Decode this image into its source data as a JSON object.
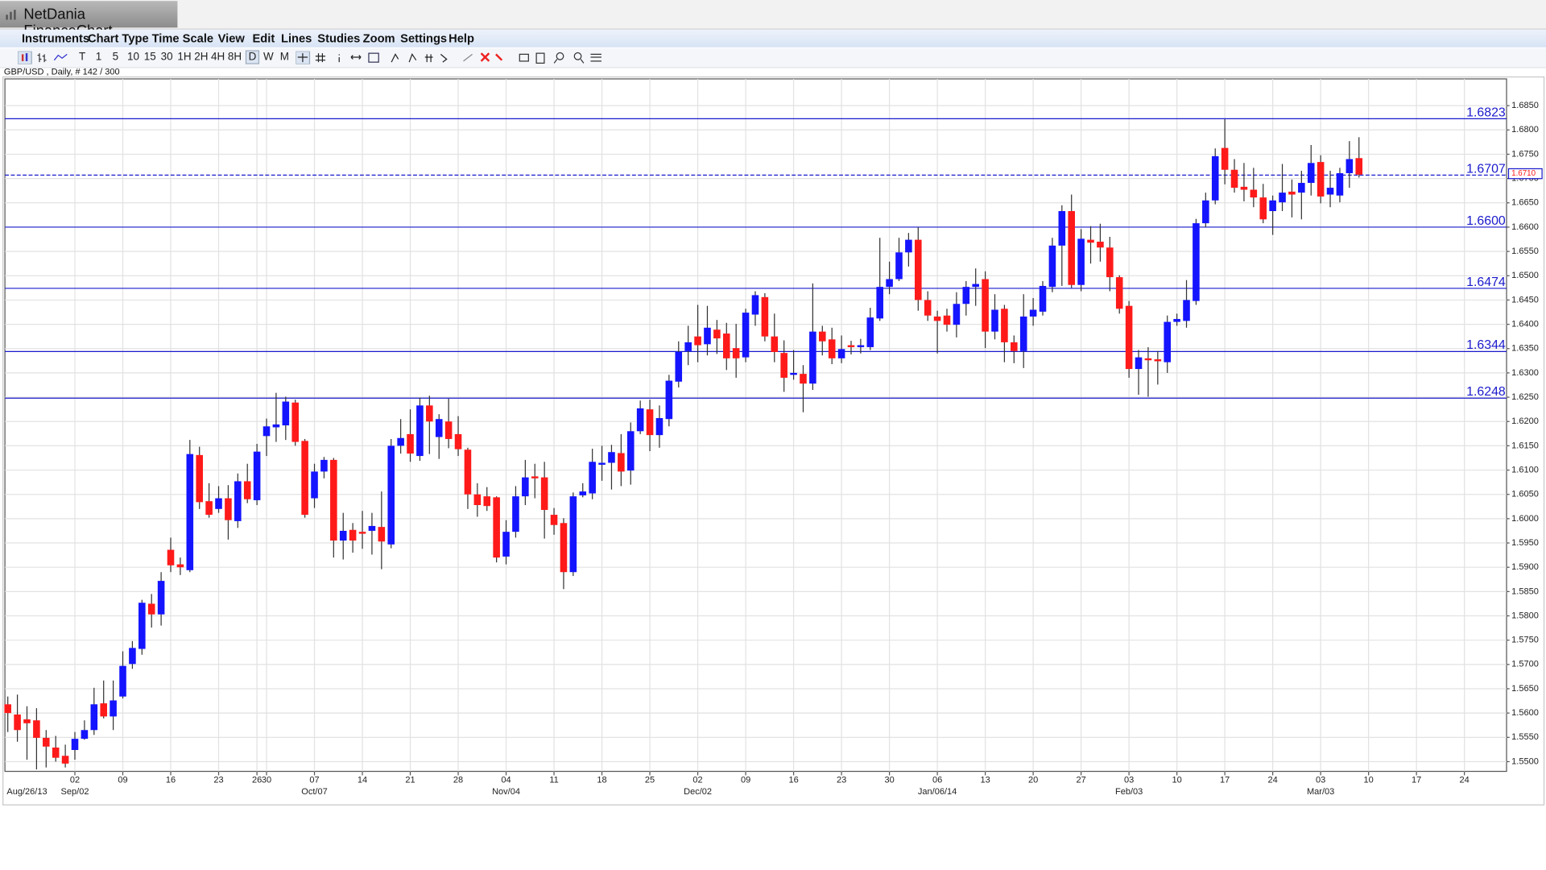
{
  "window": {
    "app_title": "NetDania FinanceChart",
    "menu": [
      "Instruments",
      "Chart Type",
      "Time Scale",
      "View",
      "Edit",
      "Lines",
      "Studies",
      "Zoom",
      "Settings",
      "Help"
    ],
    "timeframes": [
      "T",
      "1",
      "5",
      "10",
      "15",
      "30",
      "1H",
      "2H",
      "4H",
      "8H",
      "D",
      "W",
      "M"
    ]
  },
  "chart_data": {
    "type": "candlestick",
    "title": "GBP/USD , Daily, # 142 / 300",
    "up_color": "#1414ff",
    "down_color": "#ff1a1a",
    "wick_color": "#333333",
    "grid": true,
    "x": [
      0,
      1,
      2,
      3,
      4,
      5,
      6,
      7,
      8,
      9,
      10,
      11,
      12,
      13,
      14,
      15,
      16,
      17,
      18,
      19,
      20,
      21,
      22,
      23,
      24,
      25,
      26,
      27,
      28,
      29,
      30,
      31,
      32,
      33,
      34,
      35,
      36,
      37,
      38,
      39,
      40,
      41,
      42,
      43,
      44,
      45,
      46,
      47,
      48,
      49,
      50,
      51,
      52,
      53,
      54,
      55,
      56,
      57,
      58,
      59,
      60,
      61,
      62,
      63,
      64,
      65,
      66,
      67,
      68,
      69,
      70,
      71,
      72,
      73,
      74,
      75,
      76,
      77,
      78,
      79,
      80,
      81,
      82,
      83,
      84,
      85,
      86,
      87,
      88,
      89,
      90,
      91,
      92,
      93,
      94,
      95,
      96,
      97,
      98,
      99,
      100,
      101,
      102,
      103,
      104,
      105,
      106,
      107,
      108,
      109,
      110,
      111,
      112,
      113,
      114,
      115,
      116,
      117,
      118,
      119,
      120,
      121,
      122,
      123,
      124,
      125,
      126,
      127,
      128,
      129,
      130,
      131,
      132,
      133,
      134,
      135,
      136,
      137,
      138,
      139,
      140,
      141
    ],
    "open": [
      1.5618,
      1.5597,
      1.5587,
      1.5585,
      1.5549,
      1.5529,
      1.5512,
      1.5524,
      1.5547,
      1.5565,
      1.562,
      1.5593,
      1.5634,
      1.5701,
      1.5732,
      1.5825,
      1.5803,
      1.5936,
      1.5906,
      1.5894,
      1.6131,
      1.6036,
      1.602,
      1.6042,
      1.5995,
      1.6077,
      1.6038,
      1.617,
      1.6188,
      1.6192,
      1.6239,
      1.616,
      1.6042,
      1.6097,
      1.6121,
      1.5955,
      1.5977,
      1.5973,
      1.5975,
      1.5983,
      1.5947,
      1.615,
      1.6174,
      1.6129,
      1.6233,
      1.6168,
      1.62,
      1.6174,
      1.6142,
      1.605,
      1.6046,
      1.6044,
      1.5922,
      1.5973,
      1.6046,
      1.6087,
      1.6085,
      1.6008,
      1.5991,
      1.589,
      1.6048,
      1.6052,
      1.6111,
      1.6115,
      1.6135,
      1.6099,
      1.618,
      1.6225,
      1.6172,
      1.6205,
      1.6282,
      1.6345,
      1.6375,
      1.6359,
      1.6389,
      1.6381,
      1.6351,
      1.6332,
      1.642,
      1.6456,
      1.6375,
      1.6341,
      1.6296,
      1.6298,
      1.6278,
      1.6385,
      1.6369,
      1.633,
      1.6357,
      1.6353,
      1.6353,
      1.6412,
      1.6477,
      1.6493,
      1.6548,
      1.6574,
      1.645,
      1.6416,
      1.6418,
      1.6399,
      1.6442,
      1.6477,
      1.6493,
      1.6385,
      1.6432,
      1.6363,
      1.6345,
      1.6416,
      1.6426,
      1.6477,
      1.6562,
      1.6633,
      1.6481,
      1.6574,
      1.657,
      1.6558,
      1.6497,
      1.6438,
      1.6308,
      1.633,
      1.6328,
      1.6322,
      1.6405,
      1.6407,
      1.6448,
      1.6608,
      1.6655,
      1.6763,
      1.6718,
      1.6683,
      1.6677,
      1.6661,
      1.6633,
      1.6651,
      1.6673,
      1.6671,
      1.6691,
      1.6734,
      1.6667,
      1.6665,
      1.6711,
      1.6742
    ],
    "high": [
      1.5634,
      1.5638,
      1.5614,
      1.561,
      1.5565,
      1.5553,
      1.5535,
      1.5561,
      1.5585,
      1.5652,
      1.5667,
      1.5667,
      1.5727,
      1.5748,
      1.5833,
      1.5845,
      1.589,
      1.5961,
      1.592,
      1.6162,
      1.6148,
      1.6073,
      1.6067,
      1.6069,
      1.6093,
      1.6113,
      1.6154,
      1.6206,
      1.6259,
      1.6251,
      1.6245,
      1.6164,
      1.6113,
      1.6127,
      1.6125,
      1.6012,
      1.5991,
      1.6016,
      1.6012,
      1.6056,
      1.6164,
      1.6205,
      1.6225,
      1.6249,
      1.6253,
      1.6215,
      1.6247,
      1.6211,
      1.6146,
      1.6073,
      1.6065,
      1.6046,
      1.5997,
      1.6067,
      1.6121,
      1.6113,
      1.6117,
      1.6022,
      1.6001,
      1.6054,
      1.6073,
      1.6144,
      1.615,
      1.6152,
      1.6174,
      1.6198,
      1.6243,
      1.6245,
      1.6233,
      1.6296,
      1.6365,
      1.6397,
      1.644,
      1.6438,
      1.6409,
      1.6403,
      1.6401,
      1.6432,
      1.6468,
      1.6464,
      1.6422,
      1.6367,
      1.6347,
      1.6316,
      1.6484,
      1.6397,
      1.6393,
      1.6377,
      1.6366,
      1.637,
      1.6434,
      1.6578,
      1.6529,
      1.6578,
      1.6588,
      1.66,
      1.6468,
      1.6428,
      1.6432,
      1.6466,
      1.6489,
      1.6515,
      1.6509,
      1.6462,
      1.644,
      1.6377,
      1.6462,
      1.6454,
      1.6489,
      1.6578,
      1.6645,
      1.6667,
      1.6596,
      1.6602,
      1.6607,
      1.658,
      1.6501,
      1.6448,
      1.6347,
      1.6353,
      1.6345,
      1.6418,
      1.6422,
      1.6491,
      1.6617,
      1.6671,
      1.6762,
      1.6822,
      1.674,
      1.6732,
      1.6722,
      1.6689,
      1.6665,
      1.673,
      1.6698,
      1.6716,
      1.6769,
      1.6748,
      1.6716,
      1.6722,
      1.6777,
      1.6785
    ],
    "low": [
      1.5561,
      1.5541,
      1.5504,
      1.5484,
      1.5488,
      1.55,
      1.5488,
      1.5504,
      1.5545,
      1.5555,
      1.5589,
      1.5565,
      1.563,
      1.5691,
      1.572,
      1.5776,
      1.578,
      1.589,
      1.5884,
      1.589,
      1.602,
      1.6002,
      1.6012,
      1.5957,
      1.5981,
      1.6032,
      1.6028,
      1.6129,
      1.6158,
      1.6162,
      1.615,
      1.6002,
      1.6022,
      1.6083,
      1.592,
      1.5916,
      1.593,
      1.5938,
      1.5926,
      1.5896,
      1.5939,
      1.6134,
      1.6117,
      1.6119,
      1.6133,
      1.6123,
      1.6145,
      1.6129,
      1.602,
      1.6004,
      1.6016,
      1.591,
      1.5906,
      1.5961,
      1.6028,
      1.6042,
      1.5959,
      1.5967,
      1.5855,
      1.5882,
      1.6044,
      1.604,
      1.6078,
      1.606,
      1.6067,
      1.607,
      1.6174,
      1.6139,
      1.6146,
      1.619,
      1.627,
      1.6316,
      1.6322,
      1.6336,
      1.6339,
      1.6306,
      1.629,
      1.6322,
      1.6397,
      1.6365,
      1.6322,
      1.6261,
      1.6286,
      1.6219,
      1.6265,
      1.6336,
      1.6318,
      1.632,
      1.6338,
      1.634,
      1.6347,
      1.6407,
      1.6462,
      1.6489,
      1.6519,
      1.6428,
      1.6407,
      1.634,
      1.6385,
      1.6373,
      1.6418,
      1.6438,
      1.6351,
      1.6369,
      1.6322,
      1.632,
      1.631,
      1.6397,
      1.6418,
      1.6466,
      1.6479,
      1.6475,
      1.6468,
      1.6525,
      1.6529,
      1.6468,
      1.6422,
      1.629,
      1.6255,
      1.6251,
      1.6276,
      1.63,
      1.6397,
      1.6393,
      1.644,
      1.66,
      1.6647,
      1.6688,
      1.6671,
      1.6653,
      1.6641,
      1.6608,
      1.6584,
      1.6633,
      1.662,
      1.6616,
      1.6665,
      1.6649,
      1.6641,
      1.6651,
      1.6681,
      1.6702
    ],
    "close": [
      1.56,
      1.5565,
      1.5579,
      1.5549,
      1.5531,
      1.5508,
      1.5496,
      1.5547,
      1.5565,
      1.5618,
      1.5593,
      1.5626,
      1.5697,
      1.5734,
      1.5827,
      1.5803,
      1.5872,
      1.5904,
      1.59,
      1.6133,
      1.6034,
      1.6008,
      1.6042,
      1.5997,
      1.6077,
      1.604,
      1.6138,
      1.619,
      1.6194,
      1.6241,
      1.6158,
      1.6008,
      1.6097,
      1.6121,
      1.5955,
      1.5975,
      1.5955,
      1.5969,
      1.5985,
      1.5953,
      1.615,
      1.6166,
      1.6134,
      1.6233,
      1.62,
      1.6205,
      1.6164,
      1.6143,
      1.605,
      1.6028,
      1.6026,
      1.592,
      1.5973,
      1.6046,
      1.6085,
      1.6083,
      1.6018,
      1.5987,
      1.589,
      1.6046,
      1.6056,
      1.6117,
      1.6115,
      1.6137,
      1.6097,
      1.618,
      1.6227,
      1.6172,
      1.6207,
      1.6284,
      1.6343,
      1.6363,
      1.6357,
      1.6393,
      1.6371,
      1.633,
      1.633,
      1.6424,
      1.646,
      1.6375,
      1.6343,
      1.629,
      1.63,
      1.6278,
      1.6385,
      1.6365,
      1.633,
      1.6349,
      1.6353,
      1.6357,
      1.6414,
      1.6477,
      1.6493,
      1.6548,
      1.6574,
      1.645,
      1.6418,
      1.6407,
      1.6399,
      1.6442,
      1.6477,
      1.6483,
      1.6385,
      1.643,
      1.6363,
      1.6345,
      1.6416,
      1.643,
      1.6479,
      1.6562,
      1.6633,
      1.6481,
      1.6576,
      1.6568,
      1.6558,
      1.6497,
      1.6432,
      1.6308,
      1.6332,
      1.6326,
      1.6324,
      1.6405,
      1.6411,
      1.645,
      1.6608,
      1.6655,
      1.6746,
      1.6718,
      1.6681,
      1.6677,
      1.6661,
      1.6616,
      1.6655,
      1.6671,
      1.6667,
      1.6691,
      1.6732,
      1.6663,
      1.6681,
      1.6711,
      1.674,
      1.6708
    ],
    "xlim": [
      -0.3,
      156.4
    ],
    "xticks": [
      26,
      {
        "value": 7,
        "label": "02"
      },
      {
        "value": 12,
        "label": "09"
      },
      {
        "value": 17,
        "label": "16"
      },
      {
        "value": 22,
        "label": "23"
      },
      {
        "value": 27,
        "label": "30"
      },
      {
        "value": 32,
        "label": "07"
      },
      {
        "value": 37,
        "label": "14"
      },
      {
        "value": 42,
        "label": "21"
      },
      {
        "value": 47,
        "label": "28"
      },
      {
        "value": 52,
        "label": "04"
      },
      {
        "value": 57,
        "label": "11"
      },
      {
        "value": 62,
        "label": "18"
      },
      {
        "value": 67,
        "label": "25"
      },
      {
        "value": 72,
        "label": "02"
      },
      {
        "value": 77,
        "label": "09"
      },
      {
        "value": 82,
        "label": "16"
      },
      {
        "value": 87,
        "label": "23"
      },
      {
        "value": 92,
        "label": "30"
      },
      {
        "value": 97,
        "label": "06"
      },
      {
        "value": 102,
        "label": "13"
      },
      {
        "value": 107,
        "label": "20"
      },
      {
        "value": 112,
        "label": "27"
      },
      {
        "value": 117,
        "label": "03"
      },
      {
        "value": 122,
        "label": "10"
      },
      {
        "value": 127,
        "label": "17"
      },
      {
        "value": 132,
        "label": "24"
      },
      {
        "value": 137,
        "label": "03"
      },
      {
        "value": 142,
        "label": "10"
      },
      {
        "value": 147,
        "label": "17"
      },
      {
        "value": 152,
        "label": "24"
      }
    ],
    "date_ticks": [
      {
        "value": 2,
        "label": "Aug/26/13"
      },
      {
        "value": 7,
        "label": "Sep/02"
      },
      {
        "value": 32,
        "label": "Oct/07"
      },
      {
        "value": 52,
        "label": "Nov/04"
      },
      {
        "value": 72,
        "label": "Dec/02"
      },
      {
        "value": 97,
        "label": "Jan/06/14"
      },
      {
        "value": 117,
        "label": "Feb/03"
      },
      {
        "value": 137,
        "label": "Mar/03"
      }
    ],
    "ylim": [
      1.548,
      1.6905
    ],
    "yticks": [
      {
        "value": 1.55,
        "label": "1.5500"
      },
      {
        "value": 1.555,
        "label": "1.5550"
      },
      {
        "value": 1.56,
        "label": "1.5600"
      },
      {
        "value": 1.565,
        "label": "1.5650"
      },
      {
        "value": 1.57,
        "label": "1.5700"
      },
      {
        "value": 1.575,
        "label": "1.5750"
      },
      {
        "value": 1.58,
        "label": "1.5800"
      },
      {
        "value": 1.585,
        "label": "1.5850"
      },
      {
        "value": 1.59,
        "label": "1.5900"
      },
      {
        "value": 1.595,
        "label": "1.5950"
      },
      {
        "value": 1.6,
        "label": "1.6000"
      },
      {
        "value": 1.605,
        "label": "1.6050"
      },
      {
        "value": 1.61,
        "label": "1.6100"
      },
      {
        "value": 1.615,
        "label": "1.6150"
      },
      {
        "value": 1.62,
        "label": "1.6200"
      },
      {
        "value": 1.625,
        "label": "1.6250"
      },
      {
        "value": 1.63,
        "label": "1.6300"
      },
      {
        "value": 1.635,
        "label": "1.6350"
      },
      {
        "value": 1.64,
        "label": "1.6400"
      },
      {
        "value": 1.645,
        "label": "1.6450"
      },
      {
        "value": 1.65,
        "label": "1.6500"
      },
      {
        "value": 1.655,
        "label": "1.6550"
      },
      {
        "value": 1.66,
        "label": "1.6600"
      },
      {
        "value": 1.665,
        "label": "1.6650"
      },
      {
        "value": 1.67,
        "label": "1.6700"
      },
      {
        "value": 1.675,
        "label": "1.6750"
      },
      {
        "value": 1.68,
        "label": "1.6800"
      },
      {
        "value": 1.685,
        "label": "1.6850"
      }
    ],
    "hlines": [
      1.6823,
      1.6707,
      {
        "value": 1.66,
        "label": "1.6600"
      },
      1.6474,
      1.6344,
      1.6248
    ],
    "hline_styles": [
      "solid",
      "dashed",
      "solid",
      "solid",
      "solid",
      "solid"
    ],
    "hline_color": "#1a1acc",
    "last_price": {
      "value": 1.671,
      "label": "1.6710"
    }
  }
}
